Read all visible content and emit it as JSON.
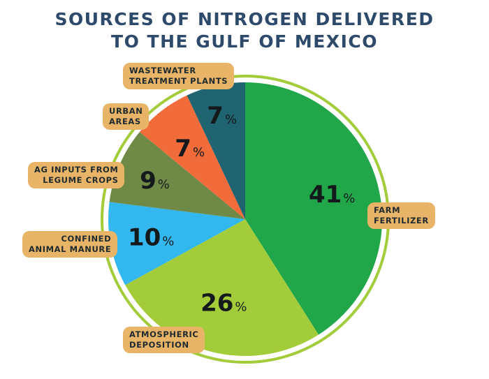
{
  "title_lines": [
    "SOURCES OF NITROGEN DELIVERED",
    "TO THE GULF OF MEXICO"
  ],
  "chart_data": {
    "type": "pie",
    "title": "SOURCES OF NITROGEN DELIVERED TO THE GULF OF MEXICO",
    "slices": [
      {
        "label": "FARM FERTILIZER",
        "label_lines": [
          "FARM",
          "FERTILIZER"
        ],
        "value": 41,
        "value_label": "41",
        "color": "#22a64a"
      },
      {
        "label": "ATMOSPHERIC DEPOSITION",
        "label_lines": [
          "ATMOSPHERIC",
          "DEPOSITION"
        ],
        "value": 26,
        "value_label": "26",
        "color": "#a3cc3a"
      },
      {
        "label": "CONFINED ANIMAL MANURE",
        "label_lines": [
          "CONFINED",
          "ANIMAL MANURE"
        ],
        "value": 10,
        "value_label": "10",
        "color": "#33b7ef"
      },
      {
        "label": "AG INPUTS FROM LEGUME CROPS",
        "label_lines": [
          "AG INPUTS FROM",
          "LEGUME CROPS"
        ],
        "value": 9,
        "value_label": "9",
        "color": "#6f8a46"
      },
      {
        "label": "URBAN AREAS",
        "label_lines": [
          "URBAN",
          "AREAS"
        ],
        "value": 7,
        "value_label": "7",
        "color": "#f26b3a"
      },
      {
        "label": "WASTEWATER TREATMENT PLANTS",
        "label_lines": [
          "WASTEWATER",
          "TREATMENT PLANTS"
        ],
        "value": 7,
        "value_label": "7",
        "color": "#1f6470"
      }
    ],
    "percent_symbol": "%",
    "ring_color": "#a3cc3a",
    "label_color": "#e8b467"
  }
}
